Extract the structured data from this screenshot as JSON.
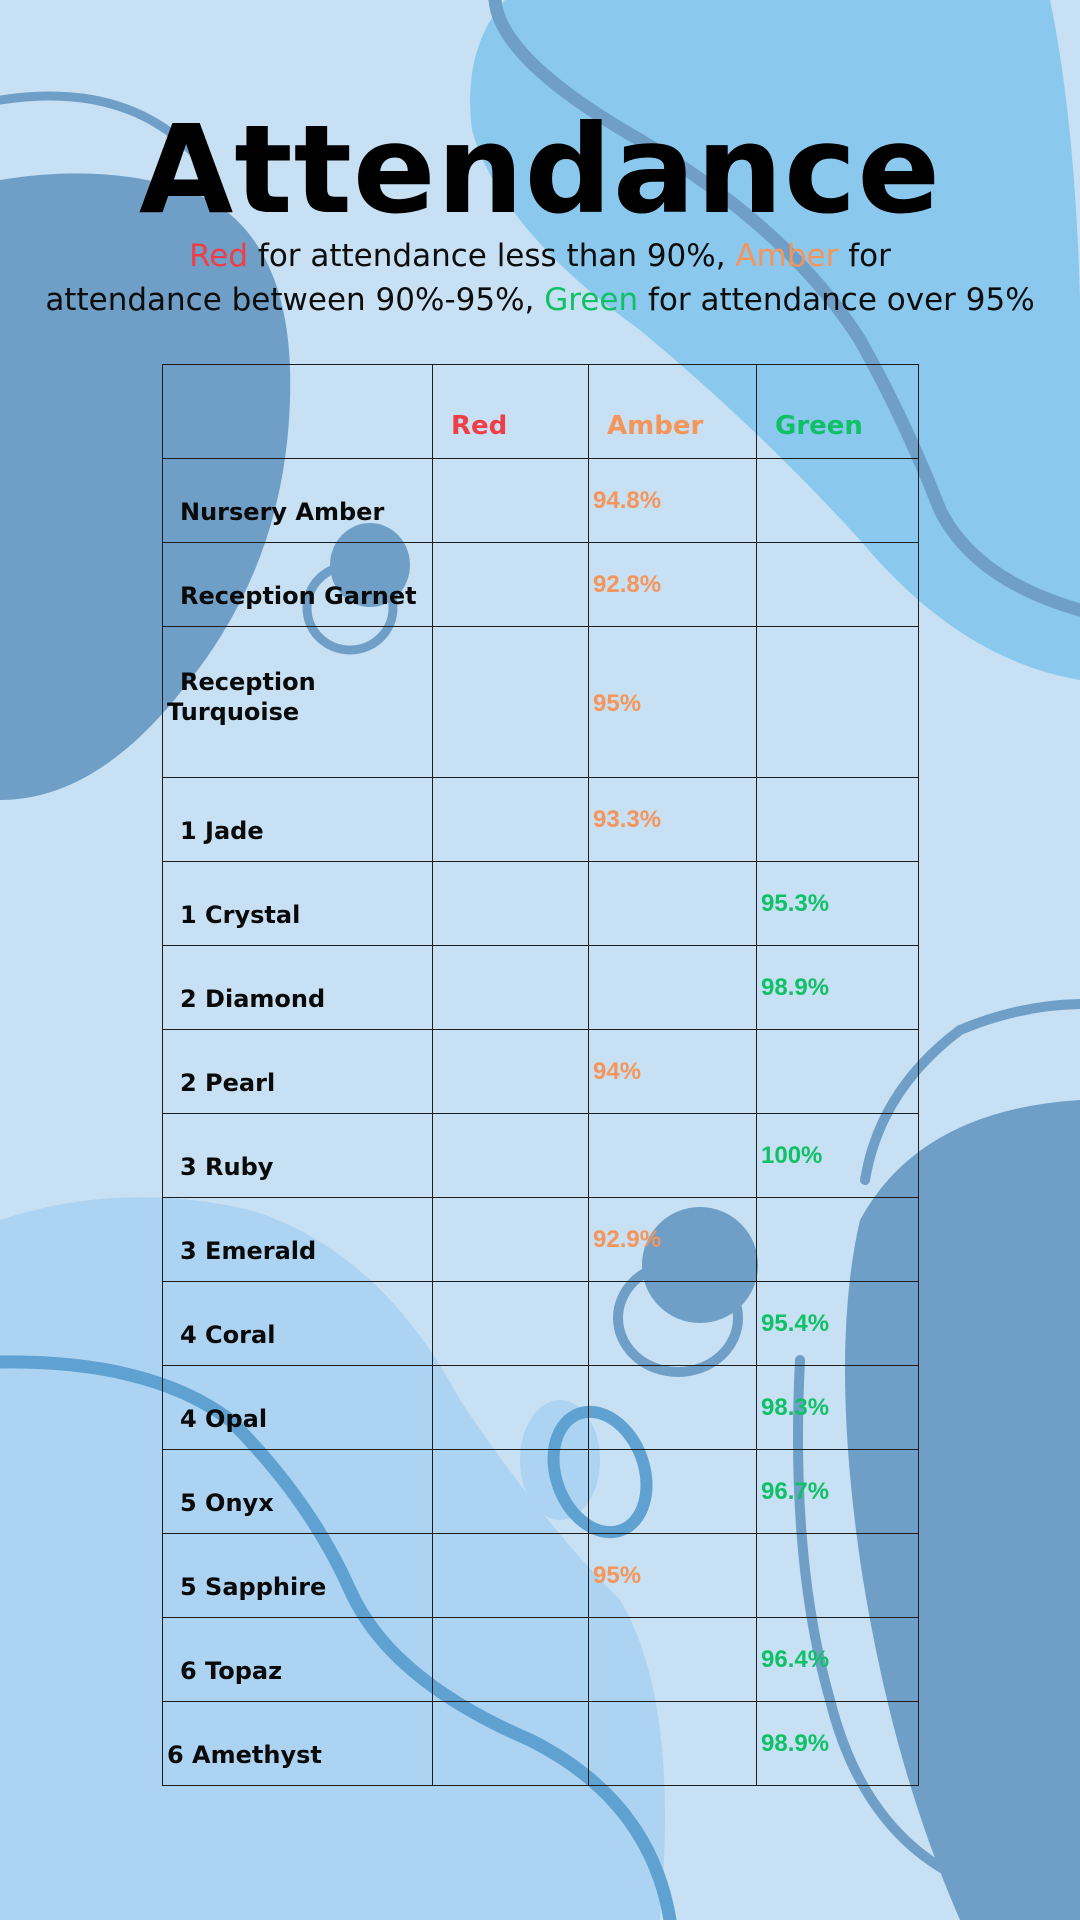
{
  "header": {
    "title": "Attendance",
    "legend": {
      "red_word": "Red",
      "red_rest": " for attendance less than 90%, ",
      "amber_word": "Amber",
      "amber_rest": " for",
      "line2_start": "attendance between 90%-95%, ",
      "green_word": "Green",
      "green_rest": " for attendance over 95%"
    }
  },
  "colors": {
    "background": "#c7e0f4",
    "red": "#ef3e46",
    "amber": "#f5955a",
    "green": "#10c066",
    "blob_dark": "#6f9fc7",
    "blob_light": "#8ac8ee"
  },
  "table": {
    "columns": [
      "",
      "Red",
      "Amber",
      "Green"
    ],
    "rows": [
      {
        "name": "Nursery Amber",
        "red": "",
        "amber": "94.8%",
        "green": ""
      },
      {
        "name": "Reception Garnet",
        "red": "",
        "amber": "92.8%",
        "green": ""
      },
      {
        "name": "Reception Turquoise",
        "name_line1": "Reception",
        "name_line2": "Turquoise",
        "red": "",
        "amber": "95%",
        "green": ""
      },
      {
        "name": "1 Jade",
        "red": "",
        "amber": "93.3%",
        "green": ""
      },
      {
        "name": "1 Crystal",
        "red": "",
        "amber": "",
        "green": "95.3%"
      },
      {
        "name": "2 Diamond",
        "red": "",
        "amber": "",
        "green": "98.9%"
      },
      {
        "name": "2 Pearl",
        "red": "",
        "amber": "94%",
        "green": ""
      },
      {
        "name": "3 Ruby",
        "red": "",
        "amber": "",
        "green": "100%"
      },
      {
        "name": "3 Emerald",
        "red": "",
        "amber": "92.9%",
        "green": ""
      },
      {
        "name": "4 Coral",
        "red": "",
        "amber": "",
        "green": "95.4%"
      },
      {
        "name": "4 Opal",
        "red": "",
        "amber": "",
        "green": "98.3%"
      },
      {
        "name": "5 Onyx",
        "red": "",
        "amber": "",
        "green": "96.7%"
      },
      {
        "name": "5 Sapphire",
        "red": "",
        "amber": "95%",
        "green": ""
      },
      {
        "name": "6 Topaz",
        "red": "",
        "amber": "",
        "green": "96.4%"
      },
      {
        "name": "6 Amethyst",
        "red": "",
        "amber": "",
        "green": "98.9%"
      }
    ]
  }
}
